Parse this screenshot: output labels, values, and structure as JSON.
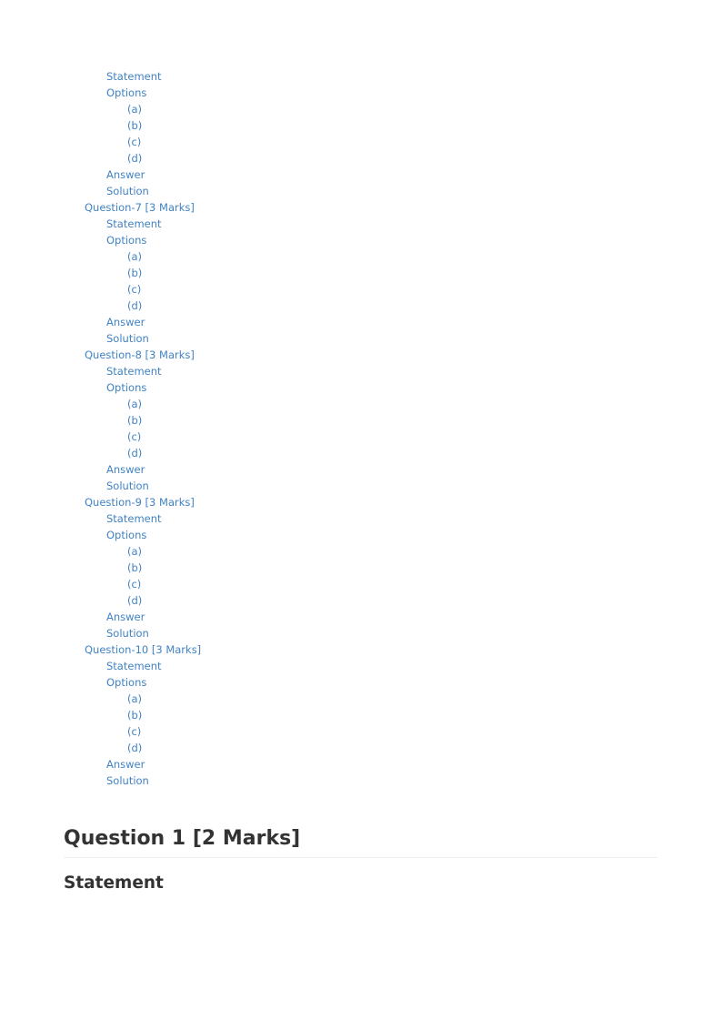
{
  "toc": [
    {
      "level": 2,
      "label": "Statement"
    },
    {
      "level": 2,
      "label": "Options"
    },
    {
      "level": 3,
      "label": "(a)"
    },
    {
      "level": 3,
      "label": "(b)"
    },
    {
      "level": 3,
      "label": "(c)"
    },
    {
      "level": 3,
      "label": "(d)"
    },
    {
      "level": 2,
      "label": "Answer"
    },
    {
      "level": 2,
      "label": "Solution"
    },
    {
      "level": 1,
      "label": "Question-7 [3 Marks]"
    },
    {
      "level": 2,
      "label": "Statement"
    },
    {
      "level": 2,
      "label": "Options"
    },
    {
      "level": 3,
      "label": "(a)"
    },
    {
      "level": 3,
      "label": "(b)"
    },
    {
      "level": 3,
      "label": "(c)"
    },
    {
      "level": 3,
      "label": "(d)"
    },
    {
      "level": 2,
      "label": "Answer"
    },
    {
      "level": 2,
      "label": "Solution"
    },
    {
      "level": 1,
      "label": "Question-8 [3 Marks]"
    },
    {
      "level": 2,
      "label": "Statement"
    },
    {
      "level": 2,
      "label": "Options"
    },
    {
      "level": 3,
      "label": "(a)"
    },
    {
      "level": 3,
      "label": "(b)"
    },
    {
      "level": 3,
      "label": "(c)"
    },
    {
      "level": 3,
      "label": "(d)"
    },
    {
      "level": 2,
      "label": "Answer"
    },
    {
      "level": 2,
      "label": "Solution"
    },
    {
      "level": 1,
      "label": "Question-9 [3 Marks]"
    },
    {
      "level": 2,
      "label": "Statement"
    },
    {
      "level": 2,
      "label": "Options"
    },
    {
      "level": 3,
      "label": "(a)"
    },
    {
      "level": 3,
      "label": "(b)"
    },
    {
      "level": 3,
      "label": "(c)"
    },
    {
      "level": 3,
      "label": "(d)"
    },
    {
      "level": 2,
      "label": "Answer"
    },
    {
      "level": 2,
      "label": "Solution"
    },
    {
      "level": 1,
      "label": "Question-10 [3 Marks]"
    },
    {
      "level": 2,
      "label": "Statement"
    },
    {
      "level": 2,
      "label": "Options"
    },
    {
      "level": 3,
      "label": "(a)"
    },
    {
      "level": 3,
      "label": "(b)"
    },
    {
      "level": 3,
      "label": "(c)"
    },
    {
      "level": 3,
      "label": "(d)"
    },
    {
      "level": 2,
      "label": "Answer"
    },
    {
      "level": 2,
      "label": "Solution"
    }
  ],
  "question": {
    "title": "Question 1 [2 Marks]",
    "section": "Statement"
  },
  "colors": {
    "link": "#4183c4",
    "heading": "#333333"
  }
}
